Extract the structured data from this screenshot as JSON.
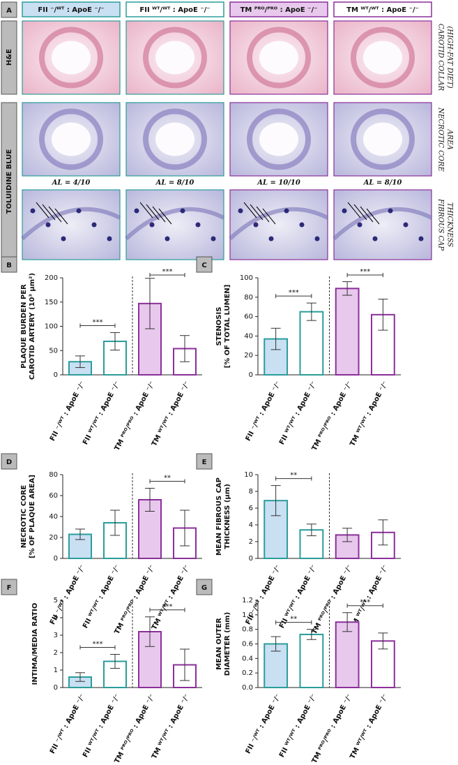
{
  "panel_a": {
    "letter": "A",
    "columns": [
      "FII ⁻/ᵂᵀ : ApoE ⁻/⁻",
      "FII ᵂᵀ/ᵂᵀ : ApoE ⁻/⁻",
      "TM ᴾᴿᴼ/ᴾᴿᴼ : ApoE ⁻/⁻",
      "TM ᵂᵀ/ᵂᵀ : ApoE ⁻/⁻"
    ],
    "rows": [
      "H&E",
      "TOLUIDINE BLUE"
    ],
    "side_labels": [
      [
        "CAROTID COLLAR",
        "(HIGH-FAT DIET)"
      ],
      [
        "NECROTIC CORE",
        "AREA"
      ],
      [
        "FIBROUS CAP",
        "THICKNESS"
      ]
    ],
    "al_labels": [
      "AL = 4/10",
      "AL = 8/10",
      "AL = 10/10",
      "AL = 8/10"
    ]
  },
  "chart_data": [
    {
      "type": "bar",
      "letter": "B",
      "ylabel": [
        "PLAQUE BURDEN PER",
        "CAROTID ARTERY (10³ µm²)"
      ],
      "categories": [
        "FII ⁻/ᵂᵀ : ApoE ⁻/⁻",
        "FII ᵂᵀ/ᵂᵀ : ApoE ⁻/⁻",
        "TM ᴾᴿᴼ/ᴾᴿᴼ : ApoE ⁻/⁻",
        "TM ᵂᵀ/ᵂᵀ : ApoE ⁻/⁻"
      ],
      "values": [
        27,
        69,
        147,
        54
      ],
      "errors": [
        12,
        18,
        52,
        27
      ],
      "ylim": [
        0,
        200
      ],
      "yticks": [
        0,
        50,
        100,
        150,
        200
      ],
      "annotations": [
        {
          "text": "***",
          "from": 0,
          "to": 1
        },
        {
          "text": "***",
          "from": 2,
          "to": 3
        }
      ]
    },
    {
      "type": "bar",
      "letter": "C",
      "ylabel": [
        "STENOSIS",
        "[% OF TOTAL LUMEN]"
      ],
      "categories": [
        "FII ⁻/ᵂᵀ : ApoE ⁻/⁻",
        "FII ᵂᵀ/ᵂᵀ : ApoE ⁻/⁻",
        "TM ᴾᴿᴼ/ᴾᴿᴼ : ApoE ⁻/⁻",
        "TM ᵂᵀ/ᵂᵀ : ApoE ⁻/⁻"
      ],
      "values": [
        37,
        65,
        89,
        62
      ],
      "errors": [
        11,
        9,
        7,
        16
      ],
      "ylim": [
        0,
        100
      ],
      "yticks": [
        0,
        20,
        40,
        60,
        80,
        100
      ],
      "annotations": [
        {
          "text": "***",
          "from": 0,
          "to": 1
        },
        {
          "text": "***",
          "from": 2,
          "to": 3
        }
      ]
    },
    {
      "type": "bar",
      "letter": "D",
      "ylabel": [
        "NECROTIC CORE",
        "[% OF PLAQUE AREA]"
      ],
      "categories": [
        "FII ⁻/ᵂᵀ : ApoE ⁻/⁻",
        "FII ᵂᵀ/ᵂᵀ : ApoE ⁻/⁻",
        "TM ᴾᴿᴼ/ᴾᴿᴼ : ApoE ⁻/⁻",
        "TM ᵂᵀ/ᵂᵀ : ApoE ⁻/⁻"
      ],
      "values": [
        23,
        34,
        56,
        29
      ],
      "errors": [
        5,
        12,
        11,
        17
      ],
      "ylim": [
        0,
        80
      ],
      "yticks": [
        0,
        20,
        40,
        60,
        80
      ],
      "annotations": [
        {
          "text": "**",
          "from": 2,
          "to": 3
        }
      ]
    },
    {
      "type": "bar",
      "letter": "E",
      "ylabel": [
        "MEAN FIBROUS CAP",
        "THICKNESS (µm)"
      ],
      "categories": [
        "FII ⁻/ᵂᵀ : ApoE ⁻/⁻",
        "FII ᵂᵀ/ᵂᵀ : ApoE ⁻/⁻",
        "TM ᴾᴿᴼ/ᴾᴿᴼ : ApoE ⁻/⁻",
        "TM ᵂᵀ/ᵂᵀ : ApoE ⁻/⁻"
      ],
      "values": [
        6.9,
        3.4,
        2.8,
        3.1
      ],
      "errors": [
        1.8,
        0.7,
        0.8,
        1.5
      ],
      "ylim": [
        0,
        10
      ],
      "yticks": [
        0,
        2,
        4,
        6,
        8,
        10
      ],
      "annotations": [
        {
          "text": "**",
          "from": 0,
          "to": 1
        }
      ]
    },
    {
      "type": "bar",
      "letter": "F",
      "ylabel": [
        "INTIMA/MEDIA RATIO"
      ],
      "categories": [
        "FII ⁻/ᵂᵀ : ApoE ⁻/⁻",
        "FII ᵂᵀ/ᵂᵀ : ApoE ⁻/⁻",
        "TM ᴾᴿᴼ/ᴾᴿᴼ : ApoE ⁻/⁻",
        "TM ᵂᵀ/ᵂᵀ : ApoE ⁻/⁻"
      ],
      "values": [
        0.6,
        1.5,
        3.2,
        1.3
      ],
      "errors": [
        0.25,
        0.4,
        0.85,
        0.9
      ],
      "ylim": [
        0,
        5
      ],
      "yticks": [
        0,
        1,
        2,
        3,
        4,
        5
      ],
      "annotations": [
        {
          "text": "***",
          "from": 0,
          "to": 1
        },
        {
          "text": "***",
          "from": 2,
          "to": 3
        }
      ]
    },
    {
      "type": "bar",
      "letter": "G",
      "ylabel": [
        "MEAN OUTER",
        "DIAMETER (mm)"
      ],
      "categories": [
        "FII ⁻/ᵂᵀ : ApoE ⁻/⁻",
        "FII ᵂᵀ/ᵂᵀ : ApoE ⁻/⁻",
        "TM ᴾᴿᴼ/ᴾᴿᴼ : ApoE ⁻/⁻",
        "TM ᵂᵀ/ᵂᵀ : ApoE ⁻/⁻"
      ],
      "values": [
        0.6,
        0.73,
        0.9,
        0.64
      ],
      "errors": [
        0.1,
        0.07,
        0.13,
        0.11
      ],
      "ylim": [
        0,
        1.2
      ],
      "yticks": [
        {
          "value": 0,
          "label": "0.0"
        },
        0.2,
        0.4,
        0.6,
        0.8,
        {
          "value": 1,
          "label": "1.0"
        },
        1.2
      ],
      "annotations": [
        {
          "text": "**",
          "from": 0,
          "to": 1
        },
        {
          "text": "***",
          "from": 2,
          "to": 3
        }
      ]
    }
  ],
  "colors": [
    "#c9dff2",
    "#ffffff",
    "#e8c8ec",
    "#ffffff"
  ],
  "edge_colors": [
    "#2a9d9a",
    "#2a9d9a",
    "#8b2f9a",
    "#8b2f9a"
  ]
}
